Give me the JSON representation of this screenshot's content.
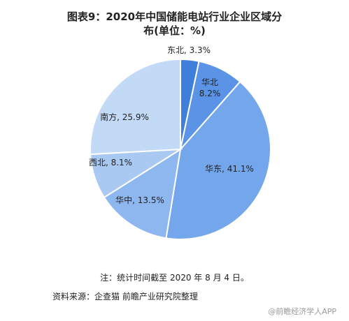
{
  "title_line1": "图表9：2020年中国储能电站行业企业区域分",
  "title_line2": "布(单位：%)",
  "chart_data": {
    "type": "pie",
    "title": "图表9：2020年中国储能电站行业企业区域分布(单位：%)",
    "categories": [
      "东北",
      "华北",
      "华东",
      "华中",
      "西北",
      "南方"
    ],
    "values": [
      3.3,
      8.2,
      41.1,
      13.5,
      8.1,
      25.9
    ],
    "labels": [
      "东北, 3.3%",
      "华北, 8.2%",
      "华东, 41.1%",
      "华中, 13.5%",
      "西北, 8.1%",
      "南方, 25.9%"
    ],
    "colors": [
      "#3f7fdb",
      "#5b94e6",
      "#74a6ec",
      "#8fb7ef",
      "#a9c9f3",
      "#c3daf6"
    ]
  },
  "note": "注：统计时间截至 2020 年 8 月 4 日。",
  "source": "资料来源：企查猫 前瞻产业研究院整理",
  "watermark_corner": "@前瞻经济学人APP"
}
